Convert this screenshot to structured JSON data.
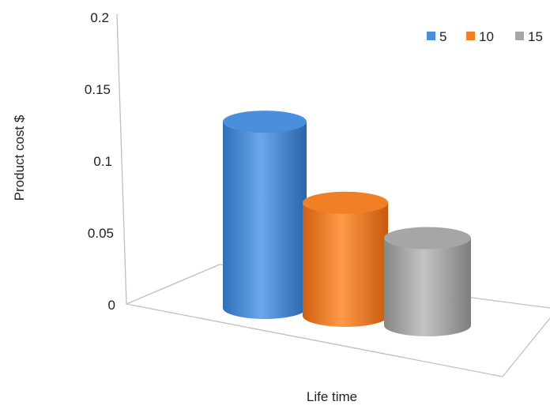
{
  "chart_data": {
    "type": "bar",
    "subtype": "3d-cylinder",
    "title": "",
    "xlabel": "Life time",
    "ylabel": "Product cost $",
    "ylim": [
      0,
      0.2
    ],
    "yticks": [
      "0",
      "0.05",
      "0.1",
      "0.15",
      "0.2"
    ],
    "grid": false,
    "legend_position": "top-right",
    "series": [
      {
        "name": "5",
        "value": 0.14,
        "color": "#4a8fdc"
      },
      {
        "name": "10",
        "value": 0.085,
        "color": "#f07f25"
      },
      {
        "name": "15",
        "value": 0.065,
        "color": "#a6a6a6"
      }
    ]
  }
}
